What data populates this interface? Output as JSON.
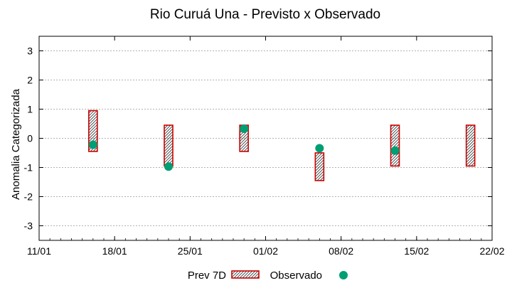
{
  "chart_data": {
    "type": "error-bar-scatter",
    "title": "Rio Curuá Una - Previsto x Observado",
    "xlabel": "",
    "ylabel": "Anomalia Categorizada",
    "ylim": [
      -3.5,
      3.5
    ],
    "y_ticks": [
      3,
      2,
      1,
      0,
      -1,
      -2,
      -3
    ],
    "x_range": [
      "2022-01-11",
      "2022-02-22"
    ],
    "x_tick_dates": [
      "2022-01-11",
      "2022-01-18",
      "2022-01-25",
      "2022-02-01",
      "2022-02-08",
      "2022-02-15",
      "2022-02-22"
    ],
    "x_tick_labels": [
      "11/01",
      "18/01",
      "25/01",
      "01/02",
      "08/02",
      "15/02",
      "22/02"
    ],
    "grid": true,
    "legend_position": "bottom",
    "colors": {
      "forecast": "#cc0000",
      "observed": "#009e73"
    },
    "series": [
      {
        "name": "Prev 7D",
        "kind": "range-box",
        "points": [
          {
            "x": "2022-01-16",
            "low": -0.45,
            "high": 0.95
          },
          {
            "x": "2022-01-23",
            "low": -0.95,
            "high": 0.45
          },
          {
            "x": "2022-01-30",
            "low": -0.45,
            "high": 0.45
          },
          {
            "x": "2022-02-06",
            "low": -1.45,
            "high": -0.5
          },
          {
            "x": "2022-02-13",
            "low": -0.95,
            "high": 0.45
          },
          {
            "x": "2022-02-20",
            "low": -0.95,
            "high": 0.45
          }
        ]
      },
      {
        "name": "Observado",
        "kind": "points",
        "points": [
          {
            "x": "2022-01-16",
            "y": -0.22
          },
          {
            "x": "2022-01-23",
            "y": -0.97
          },
          {
            "x": "2022-01-30",
            "y": 0.33
          },
          {
            "x": "2022-02-06",
            "y": -0.34
          },
          {
            "x": "2022-02-13",
            "y": -0.42
          }
        ]
      }
    ]
  }
}
